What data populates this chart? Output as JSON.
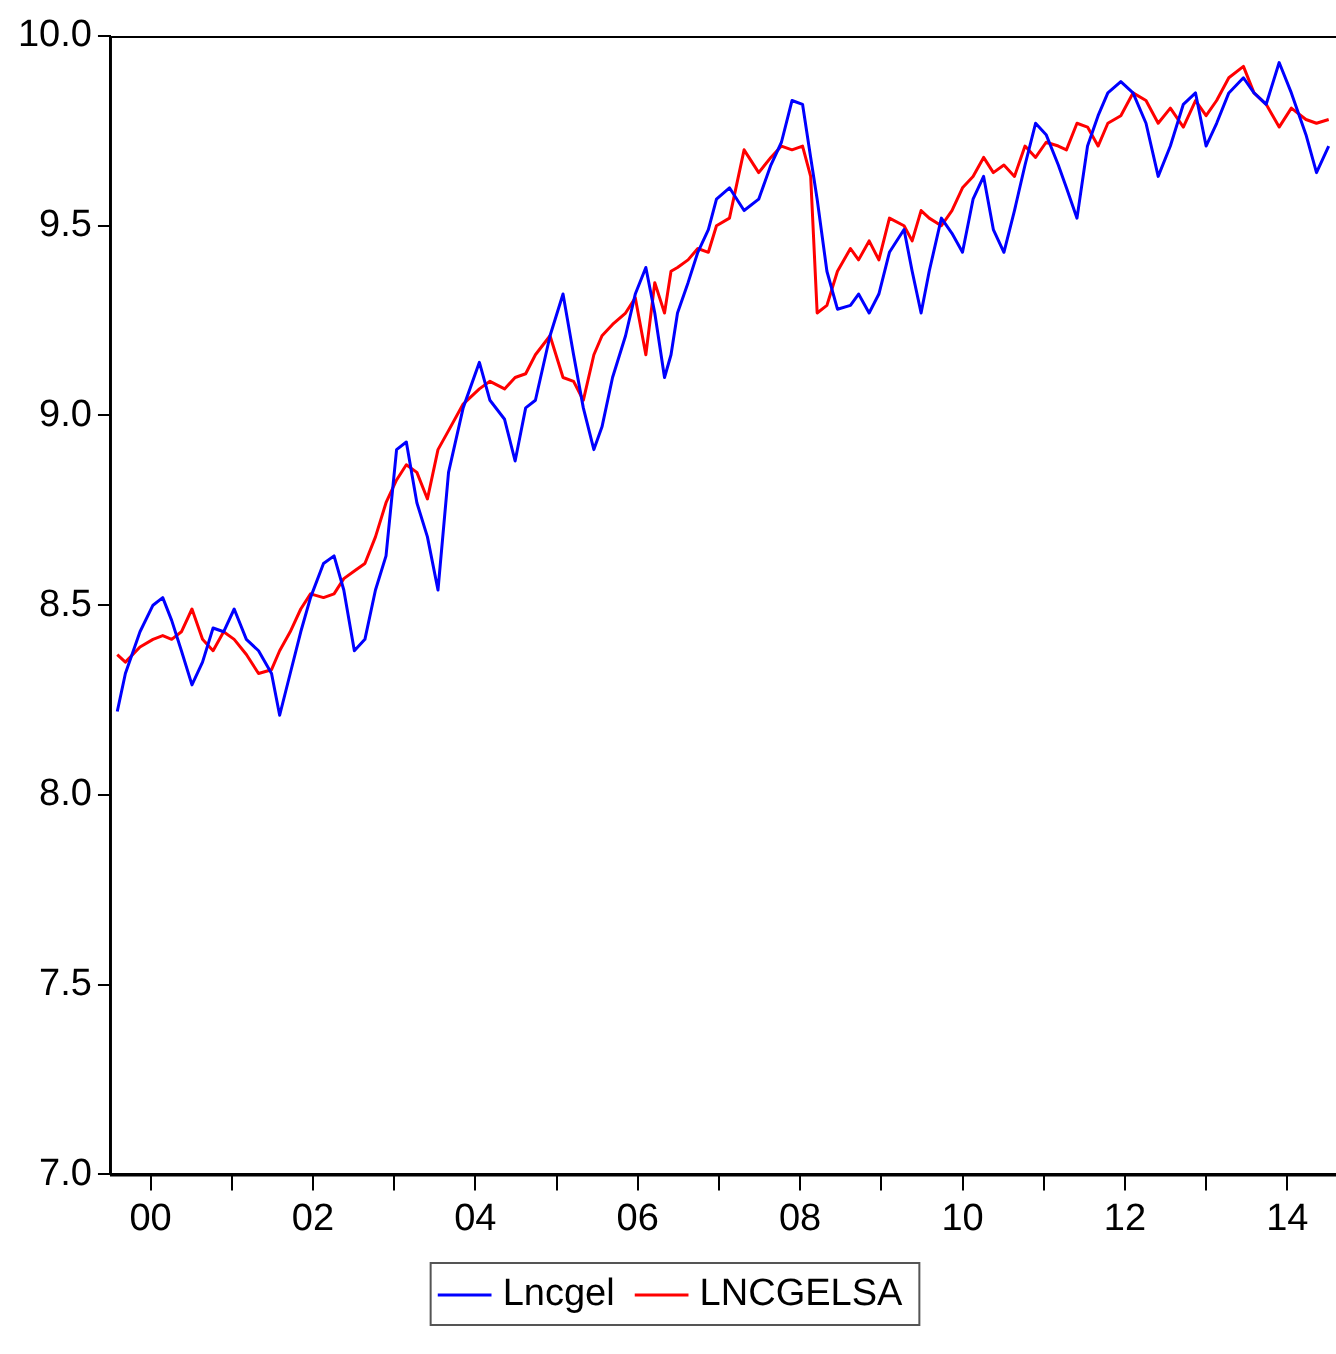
{
  "chart_data": {
    "type": "line",
    "x": [
      1999.59,
      1999.69,
      1999.87,
      2000.03,
      2000.15,
      2000.26,
      2000.38,
      2000.51,
      2000.64,
      2000.77,
      2000.9,
      2001.03,
      2001.18,
      2001.33,
      2001.49,
      2001.59,
      2001.72,
      2001.85,
      2001.97,
      2002.13,
      2002.26,
      2002.38,
      2002.51,
      2002.64,
      2002.77,
      2002.9,
      2003.03,
      2003.15,
      2003.28,
      2003.41,
      2003.54,
      2003.67,
      2003.85,
      2004.05,
      2004.18,
      2004.36,
      2004.49,
      2004.62,
      2004.74,
      2004.92,
      2005.08,
      2005.21,
      2005.33,
      2005.46,
      2005.56,
      2005.69,
      2005.85,
      2005.97,
      2006.1,
      2006.21,
      2006.33,
      2006.41,
      2006.49,
      2006.62,
      2006.74,
      2006.87,
      2006.97,
      2007.13,
      2007.31,
      2007.49,
      2007.64,
      2007.77,
      2007.9,
      2008.03,
      2008.13,
      2008.21,
      2008.33,
      2008.46,
      2008.62,
      2008.72,
      2008.85,
      2008.97,
      2009.1,
      2009.28,
      2009.38,
      2009.49,
      2009.59,
      2009.74,
      2009.87,
      2010.0,
      2010.13,
      2010.26,
      2010.38,
      2010.51,
      2010.64,
      2010.77,
      2010.9,
      2011.03,
      2011.18,
      2011.28,
      2011.41,
      2011.54,
      2011.67,
      2011.79,
      2011.95,
      2012.1,
      2012.26,
      2012.41,
      2012.56,
      2012.72,
      2012.87,
      2013.0,
      2013.13,
      2013.28,
      2013.46,
      2013.59,
      2013.74,
      2013.9,
      2014.05,
      2014.23,
      2014.36,
      2014.51
    ],
    "series": [
      {
        "name": "Lncgel",
        "color": "#0000ff",
        "values": [
          8.22,
          8.32,
          8.43,
          8.5,
          8.52,
          8.46,
          8.38,
          8.29,
          8.35,
          8.44,
          8.43,
          8.49,
          8.41,
          8.38,
          8.32,
          8.21,
          8.32,
          8.43,
          8.52,
          8.61,
          8.63,
          8.54,
          8.38,
          8.41,
          8.54,
          8.63,
          8.91,
          8.93,
          8.77,
          8.68,
          8.54,
          8.85,
          9.02,
          9.14,
          9.04,
          8.99,
          8.88,
          9.02,
          9.04,
          9.21,
          9.32,
          9.16,
          9.02,
          8.91,
          8.97,
          9.1,
          9.21,
          9.32,
          9.39,
          9.27,
          9.1,
          9.16,
          9.27,
          9.35,
          9.43,
          9.49,
          9.57,
          9.6,
          9.54,
          9.57,
          9.66,
          9.72,
          9.83,
          9.82,
          9.68,
          9.57,
          9.38,
          9.28,
          9.29,
          9.32,
          9.27,
          9.32,
          9.43,
          9.49,
          9.38,
          9.27,
          9.38,
          9.52,
          9.48,
          9.43,
          9.57,
          9.63,
          9.49,
          9.43,
          9.54,
          9.66,
          9.77,
          9.74,
          9.66,
          9.6,
          9.52,
          9.71,
          9.79,
          9.85,
          9.88,
          9.85,
          9.77,
          9.63,
          9.71,
          9.82,
          9.85,
          9.71,
          9.77,
          9.85,
          9.89,
          9.85,
          9.82,
          9.93,
          9.85,
          9.74,
          9.64,
          9.71
        ]
      },
      {
        "name": "LNCGELSA",
        "color": "#ff0000",
        "values": [
          8.37,
          8.35,
          8.39,
          8.41,
          8.42,
          8.41,
          8.43,
          8.49,
          8.41,
          8.38,
          8.43,
          8.41,
          8.37,
          8.32,
          8.33,
          8.38,
          8.43,
          8.49,
          8.53,
          8.52,
          8.53,
          8.57,
          8.59,
          8.61,
          8.68,
          8.77,
          8.83,
          8.87,
          8.85,
          8.78,
          8.91,
          8.96,
          9.03,
          9.07,
          9.09,
          9.07,
          9.1,
          9.11,
          9.16,
          9.21,
          9.1,
          9.09,
          9.04,
          9.16,
          9.21,
          9.24,
          9.27,
          9.31,
          9.16,
          9.35,
          9.27,
          9.38,
          9.39,
          9.41,
          9.44,
          9.43,
          9.5,
          9.52,
          9.7,
          9.64,
          9.68,
          9.71,
          9.7,
          9.71,
          9.63,
          9.27,
          9.29,
          9.38,
          9.44,
          9.41,
          9.46,
          9.41,
          9.52,
          9.5,
          9.46,
          9.54,
          9.52,
          9.5,
          9.54,
          9.6,
          9.63,
          9.68,
          9.64,
          9.66,
          9.63,
          9.71,
          9.68,
          9.72,
          9.71,
          9.7,
          9.77,
          9.76,
          9.71,
          9.77,
          9.79,
          9.85,
          9.83,
          9.77,
          9.81,
          9.76,
          9.83,
          9.79,
          9.83,
          9.89,
          9.92,
          9.85,
          9.82,
          9.76,
          9.81,
          9.78,
          9.77,
          9.78
        ]
      }
    ],
    "xlim": [
      1999.5,
      2014.6
    ],
    "xticks": [
      {
        "value": 2000,
        "label": "00"
      },
      {
        "value": 2001,
        "label": null
      },
      {
        "value": 2002,
        "label": "02"
      },
      {
        "value": 2003,
        "label": null
      },
      {
        "value": 2004,
        "label": "04"
      },
      {
        "value": 2005,
        "label": null
      },
      {
        "value": 2006,
        "label": "06"
      },
      {
        "value": 2007,
        "label": null
      },
      {
        "value": 2008,
        "label": "08"
      },
      {
        "value": 2009,
        "label": null
      },
      {
        "value": 2010,
        "label": "10"
      },
      {
        "value": 2011,
        "label": null
      },
      {
        "value": 2012,
        "label": "12"
      },
      {
        "value": 2013,
        "label": null
      },
      {
        "value": 2014,
        "label": "14"
      }
    ],
    "ylim": [
      7,
      10
    ],
    "yticks": [
      {
        "value": 7,
        "label": "7.0"
      },
      {
        "value": 7.5,
        "label": "7.5"
      },
      {
        "value": 8,
        "label": "8.0"
      },
      {
        "value": 8.5,
        "label": "8.5"
      },
      {
        "value": 9,
        "label": "9.0"
      },
      {
        "value": 9.5,
        "label": "9.5"
      },
      {
        "value": 10,
        "label": "10.0"
      }
    ],
    "grid": false,
    "legend": "bottom",
    "marker": "none",
    "line_style": "solid"
  }
}
